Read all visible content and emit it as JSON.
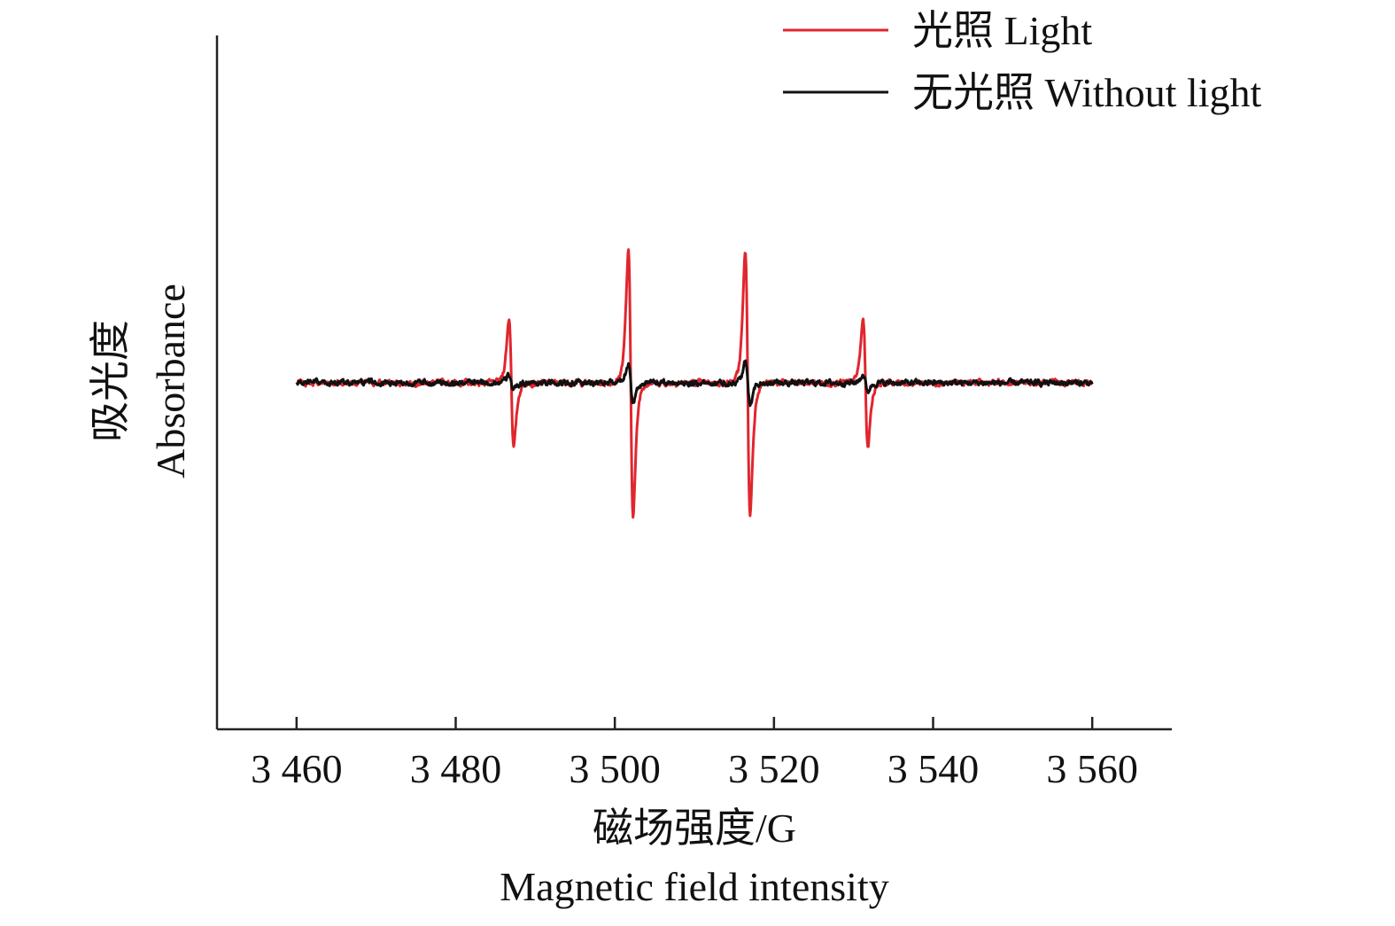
{
  "chart_data": {
    "type": "line",
    "xlabel_cn": "磁场强度/G",
    "xlabel_en": "Magnetic field intensity",
    "ylabel_cn": "吸光度",
    "ylabel_en": "Absorbance",
    "xlim": [
      3450,
      3570
    ],
    "ylim": [
      -1.0,
      1.0
    ],
    "xticks": [
      3460,
      3480,
      3500,
      3520,
      3540,
      3560
    ],
    "xtick_labels": [
      "3 460",
      "3 480",
      "3 500",
      "3 520",
      "3 540",
      "3 560"
    ],
    "yticks_shown": false,
    "legend_position": "top-right",
    "x_range": [
      3460,
      3560
    ],
    "series": [
      {
        "name": "光照 Light",
        "color": "#e0262e",
        "baseline": 0.0,
        "noise": 0.018,
        "lines": [
          {
            "center": 3487.0,
            "amplitude": 0.95
          },
          {
            "center": 3502.0,
            "amplitude": 1.95
          },
          {
            "center": 3516.7,
            "amplitude": 1.96
          },
          {
            "center": 3531.5,
            "amplitude": 0.94
          }
        ],
        "half_width": 0.55
      },
      {
        "name": "无光照 Without light",
        "color": "#111111",
        "baseline": 0.0,
        "noise": 0.018,
        "lines": [
          {
            "center": 3487.0,
            "amplitude": 0.12
          },
          {
            "center": 3502.0,
            "amplitude": 0.3
          },
          {
            "center": 3516.7,
            "amplitude": 0.3
          },
          {
            "center": 3531.5,
            "amplitude": 0.12
          }
        ],
        "half_width": 0.55
      }
    ]
  }
}
